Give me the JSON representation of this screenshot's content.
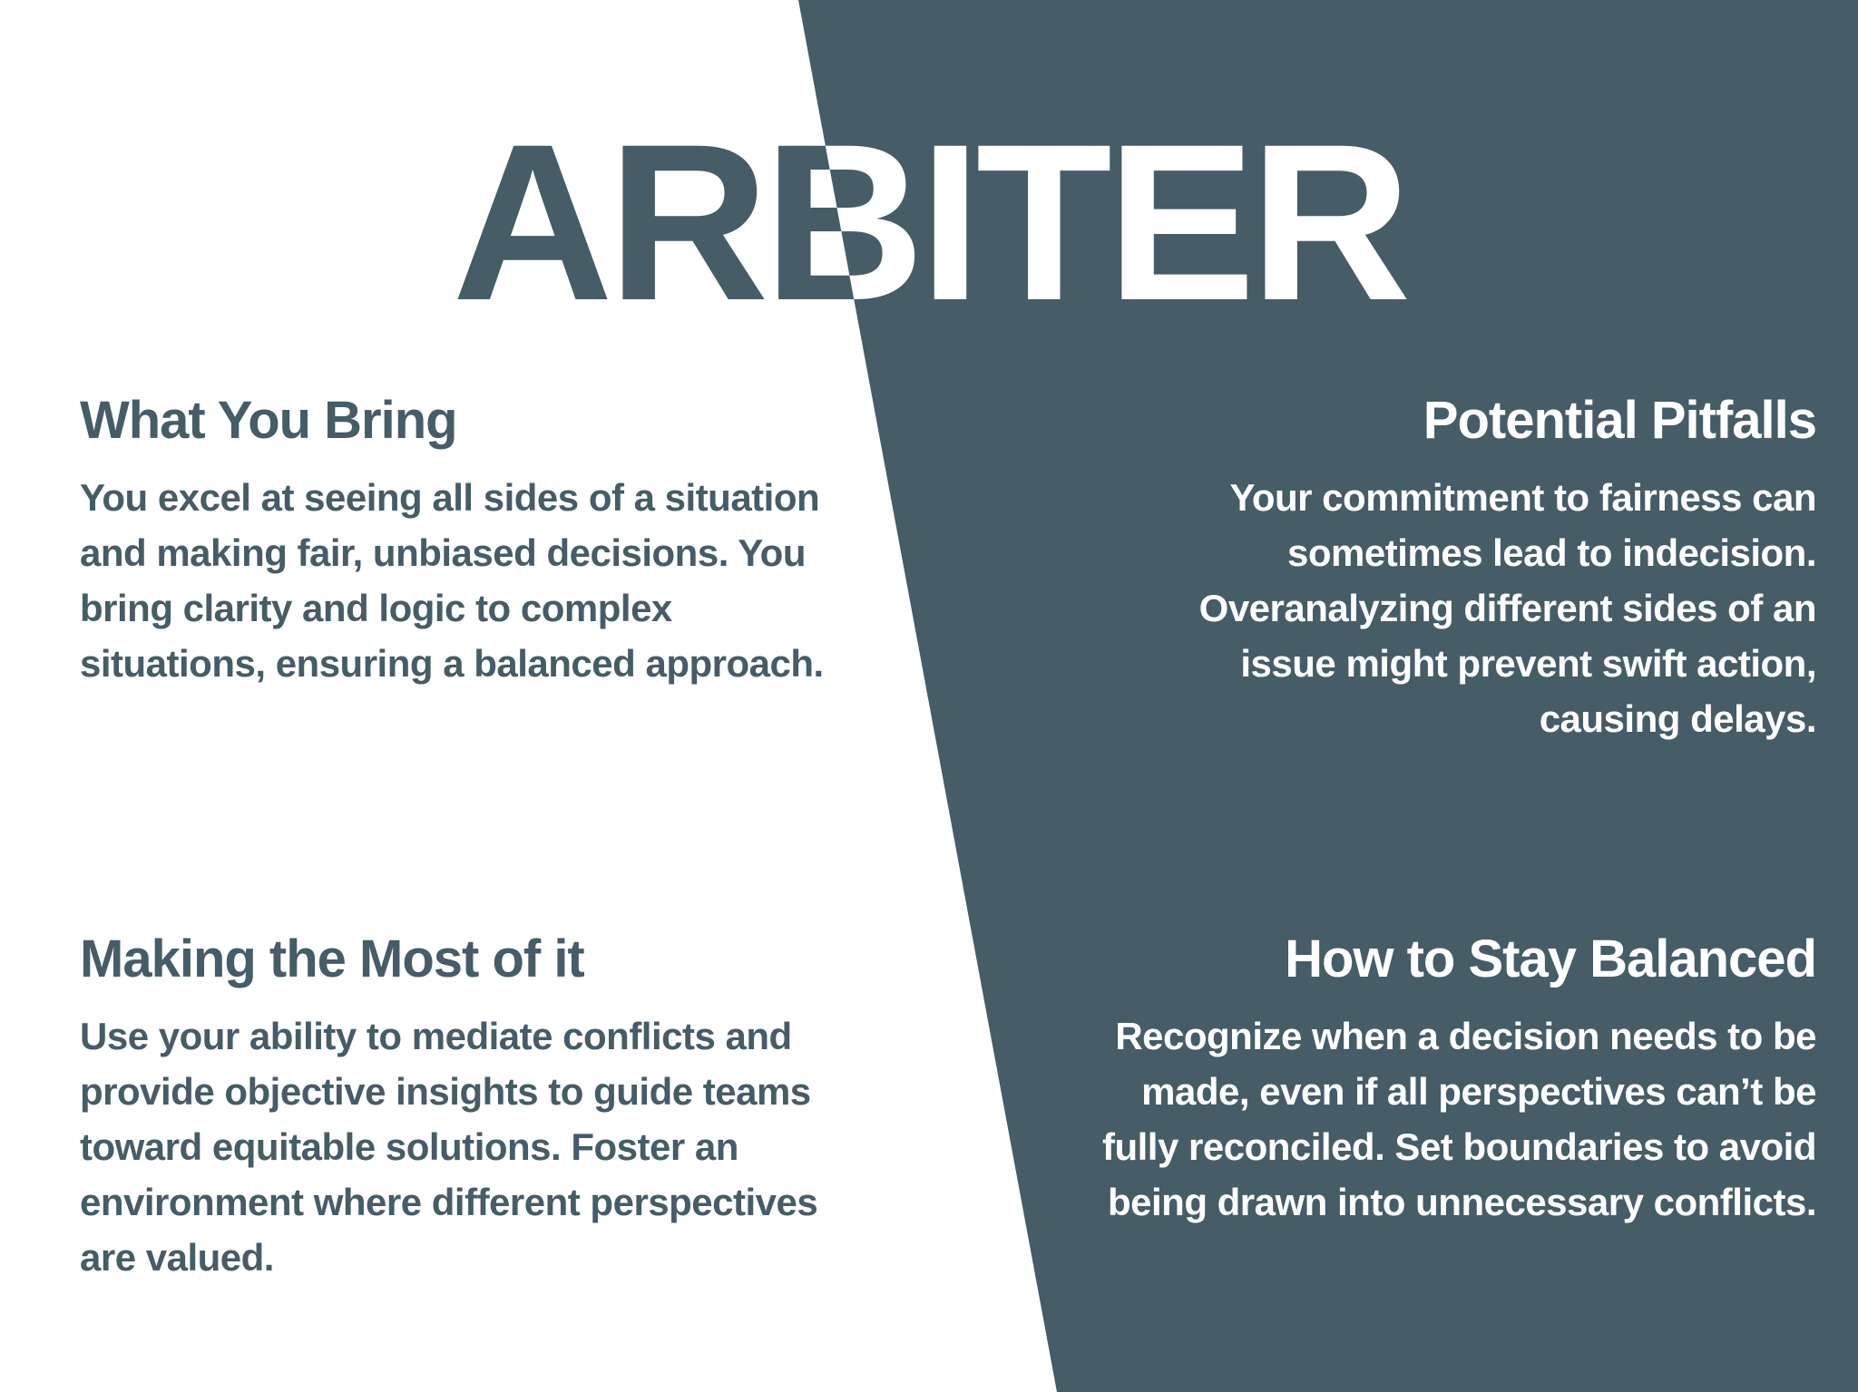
{
  "title": "ARBITER",
  "colors": {
    "primary_dark": "#465c67",
    "background_light": "#ffffff",
    "text_light": "#ffffff"
  },
  "sections": {
    "what_you_bring": {
      "heading": "What You Bring",
      "body": "You excel at seeing all sides of a situation and making fair, unbiased decisions. You bring clarity and logic to complex situations, ensuring a balanced approach."
    },
    "potential_pitfalls": {
      "heading": "Potential Pitfalls",
      "body": "Your commitment to fairness can sometimes lead to indecision. Overanalyzing different sides of an issue might prevent swift action, causing delays."
    },
    "making_the_most": {
      "heading": "Making the Most of it",
      "body": "Use your ability to mediate conflicts and provide objective insights to guide teams toward equitable solutions. Foster an environment where different perspectives are valued."
    },
    "stay_balanced": {
      "heading": "How to Stay Balanced",
      "body": "Recognize when a decision needs to be made, even if all perspectives can’t be fully reconciled. Set boundaries to avoid being drawn into unnecessary conflicts."
    }
  }
}
